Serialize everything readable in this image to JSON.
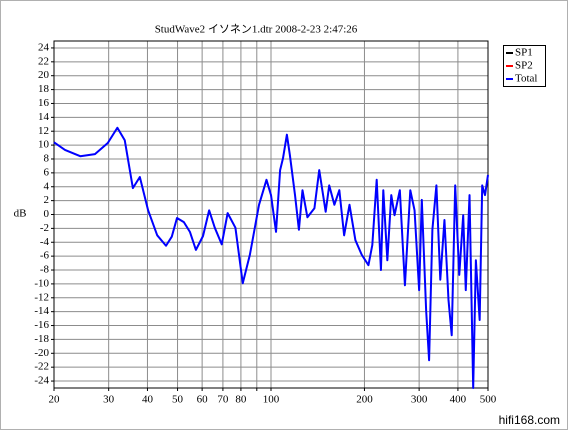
{
  "chart_data": {
    "type": "line",
    "title": "StudWave2  イソネン1.dtr     2008-2-23 2:47:26",
    "y_label": "dB",
    "watermark": "hifi168.com",
    "log_x": true,
    "grid": true,
    "xlim": [
      20,
      500
    ],
    "ylim": [
      -25,
      25
    ],
    "xticks": [
      20,
      30,
      40,
      50,
      60,
      70,
      80,
      {
        "value": 90,
        "label": null
      },
      100,
      200,
      300,
      400,
      500
    ],
    "yticks": [
      -24,
      -22,
      -20,
      -18,
      -16,
      -14,
      -12,
      -10,
      -8,
      -6,
      -4,
      -2,
      0,
      2,
      4,
      6,
      8,
      10,
      12,
      14,
      16,
      18,
      20,
      22,
      24
    ],
    "x": [
      20,
      21.7,
      24.3,
      27.1,
      29.8,
      32,
      33.8,
      35.9,
      37.8,
      40.2,
      43,
      45.9,
      47.9,
      49.8,
      52.4,
      54.8,
      57.3,
      60.4,
      63.2,
      65.9,
      69.4,
      72.5,
      76.8,
      81.1,
      85.5,
      91.5,
      96.7,
      100,
      103.8,
      107,
      109.3,
      112.5,
      115,
      119.5,
      123,
      126.3,
      131,
      138,
      143,
      150,
      154,
      160,
      166,
      172,
      179,
      187,
      196,
      206,
      212,
      219,
      226,
      230,
      237,
      244,
      250,
      260,
      270,
      281,
      290,
      300,
      306,
      316,
      323,
      331,
      341,
      351,
      362,
      373,
      382,
      392,
      404,
      416,
      424,
      436,
      448,
      457,
      470,
      479,
      489,
      500
    ],
    "series": [
      {
        "name": "SP1",
        "color": "#000000",
        "values": [
          null,
          null,
          null,
          null,
          null,
          null,
          null,
          null,
          null,
          null,
          null,
          null,
          null,
          null,
          null,
          null,
          null,
          null,
          null,
          null,
          null,
          null,
          null,
          null,
          null,
          null,
          null,
          null,
          null,
          null,
          null,
          null,
          null,
          null,
          null,
          null,
          null,
          null,
          null,
          null,
          null,
          null,
          null,
          null,
          null,
          null,
          null,
          null,
          null,
          null,
          null,
          null,
          null,
          null,
          null,
          null,
          null,
          null,
          null,
          null,
          null,
          null,
          null,
          null,
          null,
          null,
          null,
          null,
          null,
          null,
          null,
          null,
          null,
          null,
          null,
          null,
          null,
          null,
          null,
          null
        ]
      },
      {
        "name": "SP2",
        "color": "#ff0000",
        "values": [
          null,
          null,
          null,
          null,
          null,
          null,
          null,
          null,
          null,
          null,
          null,
          null,
          null,
          null,
          null,
          null,
          null,
          null,
          null,
          null,
          null,
          null,
          null,
          null,
          null,
          null,
          null,
          null,
          null,
          null,
          null,
          null,
          null,
          null,
          null,
          null,
          null,
          null,
          null,
          null,
          null,
          null,
          null,
          null,
          null,
          null,
          null,
          null,
          null,
          null,
          null,
          null,
          null,
          null,
          null,
          null,
          null,
          null,
          null,
          null,
          null,
          null,
          null,
          null,
          null,
          null,
          null,
          null,
          null,
          null,
          null,
          null,
          null,
          null,
          null,
          null,
          null,
          null,
          null,
          null
        ]
      },
      {
        "name": "Total",
        "color": "#0000ff",
        "values": [
          10.4,
          9.3,
          8.4,
          8.7,
          10.3,
          12.5,
          10.7,
          3.8,
          5.4,
          0.6,
          -3,
          -4.5,
          -3.2,
          -0.5,
          -1.1,
          -2.5,
          -5.1,
          -3.1,
          0.6,
          -1.9,
          -4.3,
          0.2,
          -1.9,
          -9.9,
          -5.8,
          1.4,
          5,
          2.8,
          -2.5,
          6.4,
          8.1,
          11.5,
          8.6,
          2.8,
          -2.2,
          3.5,
          -0.4,
          0.9,
          6.4,
          0.4,
          4.2,
          1.4,
          3.5,
          -3,
          1.4,
          -3.7,
          -5.8,
          -7.3,
          -4.4,
          5,
          -8,
          3.5,
          -6.6,
          2.8,
          -0.1,
          3.5,
          -10.2,
          3.5,
          0.6,
          -10.9,
          2.1,
          -13.8,
          -21,
          -2.2,
          4.2,
          -9.4,
          -0.8,
          -12.3,
          -17.4,
          4.2,
          -8.7,
          -0.1,
          -10.9,
          2.8,
          -25,
          -6.6,
          -15.2,
          4.2,
          2.8,
          5.7
        ]
      }
    ]
  }
}
